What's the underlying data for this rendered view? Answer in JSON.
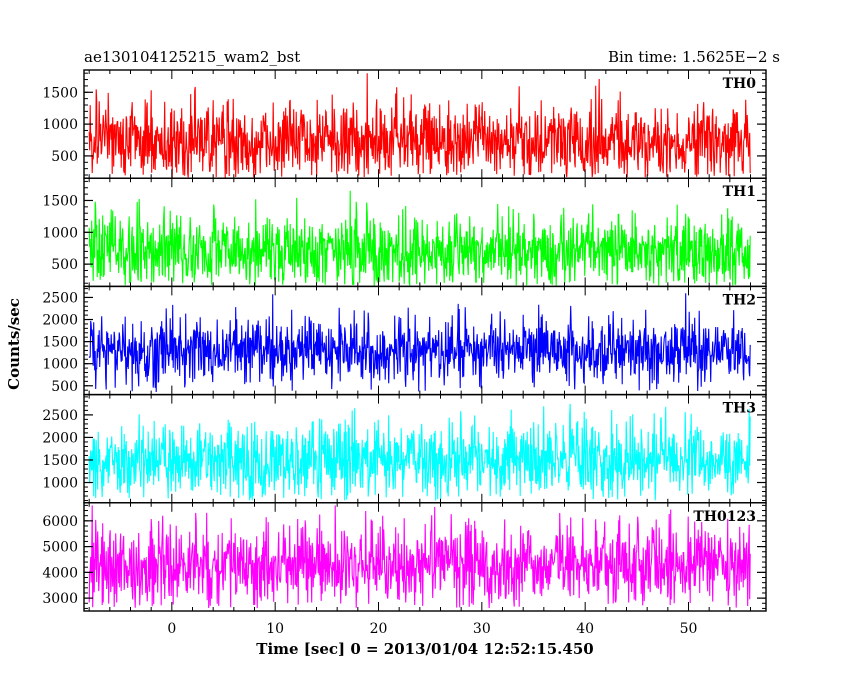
{
  "chart_data": {
    "type": "line",
    "title": "ae130104125215_wam2_bst",
    "subtitle": "Bin time: 1.5625E−2 s",
    "xlabel": "Time [sec] 0 = 2013/01/04 12:52:15.450",
    "ylabel": "Counts/sec",
    "xlim": [
      -8.5,
      57.5
    ],
    "x_data_range": [
      -8,
      56
    ],
    "x_ticks": [
      0,
      10,
      20,
      30,
      40,
      50
    ],
    "x_minor_step": 2,
    "grid": false,
    "legend": "none",
    "series": [
      {
        "name": "TH0",
        "color": "#ff0000",
        "ylim": [
          150,
          1850
        ],
        "y_ticks": [
          500,
          1000,
          1500
        ],
        "y_minor_step": 100,
        "mean": 730,
        "noise_sd": 310,
        "y_min_observed": 160,
        "y_max_observed": 1800
      },
      {
        "name": "TH1",
        "color": "#00ff00",
        "ylim": [
          150,
          1850
        ],
        "y_ticks": [
          500,
          1000,
          1500
        ],
        "y_minor_step": 100,
        "mean": 700,
        "noise_sd": 300,
        "y_min_observed": 160,
        "y_max_observed": 1800
      },
      {
        "name": "TH2",
        "color": "#0000ff",
        "ylim": [
          300,
          2750
        ],
        "y_ticks": [
          500,
          1000,
          1500,
          2000,
          2500
        ],
        "y_minor_step": 100,
        "mean": 1300,
        "noise_sd": 380,
        "y_min_observed": 350,
        "y_max_observed": 2700
      },
      {
        "name": "TH3",
        "color": "#00ffff",
        "ylim": [
          550,
          2950
        ],
        "y_ticks": [
          1000,
          1500,
          2000,
          2500
        ],
        "y_minor_step": 100,
        "mean": 1500,
        "noise_sd": 440,
        "y_min_observed": 600,
        "y_max_observed": 2900
      },
      {
        "name": "TH0123",
        "color": "#ff00ff",
        "ylim": [
          2500,
          6700
        ],
        "y_ticks": [
          3000,
          4000,
          5000,
          6000
        ],
        "y_minor_step": 200,
        "mean": 4300,
        "noise_sd": 820,
        "y_min_observed": 2600,
        "y_max_observed": 6600
      }
    ]
  }
}
